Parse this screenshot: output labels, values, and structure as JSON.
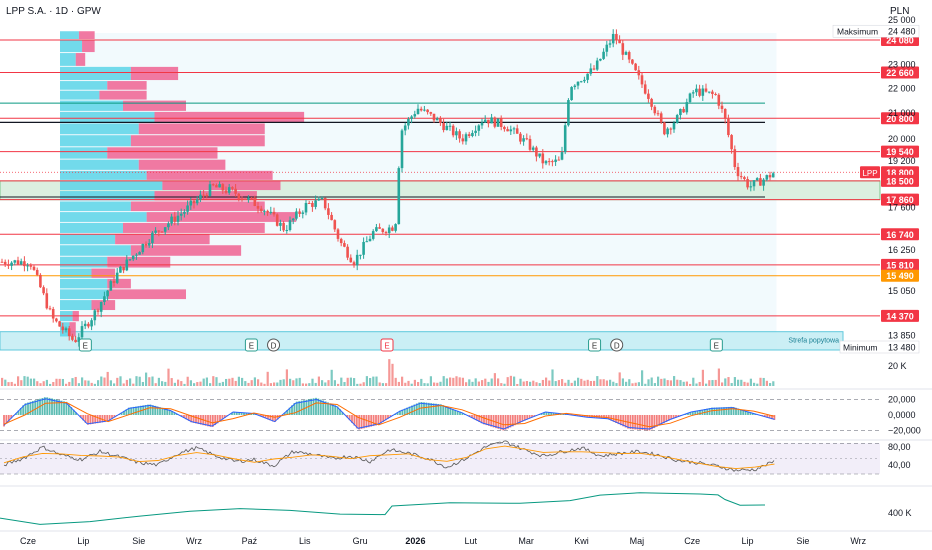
{
  "header": {
    "symbol_title": "LPP S.A. · 1D · GPW",
    "currency": "PLN"
  },
  "colors": {
    "up": "#26a69a",
    "down": "#ef5350",
    "level_red": "#f23645",
    "level_orange": "#ff9800",
    "level_green": "#089981",
    "volume_profile_up": "#5cd3e8",
    "volume_profile_down": "#f06292",
    "macd_line": "#2962ff",
    "signal_line": "#ff6d00",
    "stoch_k": "#555555",
    "stoch_d": "#ff9800",
    "obv": "#089981"
  },
  "chart_data": {
    "type": "candlestick",
    "symbol": "LPP",
    "current_price_label": "LPP",
    "current_price": 18800,
    "y_axis": {
      "range": [
        13480,
        25000
      ],
      "scale": "log",
      "tick_labels": [
        "25 000",
        "23 000",
        "22 000",
        "21 000",
        "20 000",
        "19 200",
        "17 600",
        "16 250",
        "15 050",
        "13 850"
      ],
      "tick_values": [
        25000,
        23000,
        22000,
        21000,
        20000,
        19200,
        17600,
        16250,
        15050,
        13850
      ]
    },
    "x_axis": {
      "labels": [
        "Cze",
        "Lip",
        "Sie",
        "Wrz",
        "Paź",
        "Lis",
        "Gru",
        "2026",
        "Lut",
        "Mar",
        "Kwi",
        "Maj",
        "Cze",
        "Lip",
        "Sie",
        "Wrz"
      ],
      "bold_label": "2026"
    },
    "levels": [
      {
        "label": "24 080",
        "value": 24080,
        "color": "red"
      },
      {
        "label": "22 660",
        "value": 22660,
        "color": "red"
      },
      {
        "label": "20 800",
        "value": 20800,
        "color": "red"
      },
      {
        "label": "19 540",
        "value": 19540,
        "color": "red"
      },
      {
        "label": "18 800",
        "value": 18800,
        "color": "red"
      },
      {
        "label": "18 500",
        "value": 18500,
        "color": "red"
      },
      {
        "label": "17 860",
        "value": 17860,
        "color": "red"
      },
      {
        "label": "16 740",
        "value": 16740,
        "color": "red"
      },
      {
        "label": "15 810",
        "value": 15810,
        "color": "red"
      },
      {
        "label": "15 490",
        "value": 15490,
        "color": "orange"
      },
      {
        "label": "14 370",
        "value": 14370,
        "color": "red"
      }
    ],
    "extremes": {
      "max_label": "Maksimum",
      "max_value": "24 480",
      "min_label": "Minimum",
      "min_value": "13 480"
    },
    "zones": [
      {
        "label": "",
        "from": 17860,
        "to": 18500,
        "color": "green"
      },
      {
        "label": "Strefa popytowa",
        "from": 13480,
        "to": 13950,
        "color": "cyan"
      }
    ],
    "event_markers": [
      {
        "month_index": 1,
        "kind": "E"
      },
      {
        "month_index": 4,
        "kind": "E"
      },
      {
        "month_index": 4.4,
        "kind": "D"
      },
      {
        "month_index": 6.45,
        "kind": "E"
      },
      {
        "month_index": 10.2,
        "kind": "E"
      },
      {
        "month_index": 10.6,
        "kind": "D"
      },
      {
        "month_index": 12.4,
        "kind": "E"
      }
    ],
    "price_path": [
      {
        "m": 0.0,
        "p": 15900
      },
      {
        "m": 0.4,
        "p": 14300
      },
      {
        "m": 0.8,
        "p": 13700
      },
      {
        "m": 1.15,
        "p": 14400
      },
      {
        "m": 1.6,
        "p": 15600
      },
      {
        "m": 2.2,
        "p": 16700
      },
      {
        "m": 2.8,
        "p": 17500
      },
      {
        "m": 3.3,
        "p": 18300
      },
      {
        "m": 3.7,
        "p": 18100
      },
      {
        "m": 4.2,
        "p": 17600
      },
      {
        "m": 4.6,
        "p": 16900
      },
      {
        "m": 5.0,
        "p": 17700
      },
      {
        "m": 5.3,
        "p": 17800
      },
      {
        "m": 5.6,
        "p": 16500
      },
      {
        "m": 5.85,
        "p": 15900
      },
      {
        "m": 6.2,
        "p": 16800
      },
      {
        "m": 6.6,
        "p": 17000
      },
      {
        "m": 6.7,
        "p": 20300
      },
      {
        "m": 7.0,
        "p": 21200
      },
      {
        "m": 7.3,
        "p": 20800
      },
      {
        "m": 7.8,
        "p": 20000
      },
      {
        "m": 8.2,
        "p": 20800
      },
      {
        "m": 8.6,
        "p": 20500
      },
      {
        "m": 9.0,
        "p": 19800
      },
      {
        "m": 9.3,
        "p": 19100
      },
      {
        "m": 9.6,
        "p": 19200
      },
      {
        "m": 9.75,
        "p": 22100
      },
      {
        "m": 10.2,
        "p": 22800
      },
      {
        "m": 10.55,
        "p": 24300
      },
      {
        "m": 10.8,
        "p": 23200
      },
      {
        "m": 11.2,
        "p": 21600
      },
      {
        "m": 11.45,
        "p": 20300
      },
      {
        "m": 11.7,
        "p": 20800
      },
      {
        "m": 12.0,
        "p": 21900
      },
      {
        "m": 12.4,
        "p": 21700
      },
      {
        "m": 12.55,
        "p": 20800
      },
      {
        "m": 12.75,
        "p": 18900
      },
      {
        "m": 13.0,
        "p": 18300
      },
      {
        "m": 13.3,
        "p": 18600
      },
      {
        "m": 13.45,
        "p": 18800
      }
    ],
    "volume_profile": [
      {
        "price_from": 24080,
        "price_to": 24480,
        "up": 0.12,
        "down": 0.1
      },
      {
        "price_from": 23500,
        "price_to": 24080,
        "up": 0.14,
        "down": 0.08
      },
      {
        "price_from": 22900,
        "price_to": 23500,
        "up": 0.1,
        "down": 0.06
      },
      {
        "price_from": 22300,
        "price_to": 22900,
        "up": 0.45,
        "down": 0.3
      },
      {
        "price_from": 21900,
        "price_to": 22300,
        "up": 0.3,
        "down": 0.25
      },
      {
        "price_from": 21500,
        "price_to": 21900,
        "up": 0.25,
        "down": 0.3
      },
      {
        "price_from": 21050,
        "price_to": 21500,
        "up": 0.4,
        "down": 0.4
      },
      {
        "price_from": 20600,
        "price_to": 21050,
        "up": 0.6,
        "down": 0.95
      },
      {
        "price_from": 20150,
        "price_to": 20600,
        "up": 0.5,
        "down": 0.8
      },
      {
        "price_from": 19700,
        "price_to": 20150,
        "up": 0.45,
        "down": 0.85
      },
      {
        "price_from": 19250,
        "price_to": 19700,
        "up": 0.3,
        "down": 0.7
      },
      {
        "price_from": 18850,
        "price_to": 19250,
        "up": 0.5,
        "down": 0.55
      },
      {
        "price_from": 18500,
        "price_to": 18850,
        "up": 0.55,
        "down": 0.8
      },
      {
        "price_from": 18150,
        "price_to": 18500,
        "up": 0.65,
        "down": 0.75
      },
      {
        "price_from": 17800,
        "price_to": 18150,
        "up": 0.6,
        "down": 0.65
      },
      {
        "price_from": 17450,
        "price_to": 17800,
        "up": 0.45,
        "down": 0.85
      },
      {
        "price_from": 17100,
        "price_to": 17450,
        "up": 0.55,
        "down": 0.95
      },
      {
        "price_from": 16750,
        "price_to": 17100,
        "up": 0.4,
        "down": 0.9
      },
      {
        "price_from": 16400,
        "price_to": 16750,
        "up": 0.35,
        "down": 0.6
      },
      {
        "price_from": 16050,
        "price_to": 16400,
        "up": 0.45,
        "down": 0.7
      },
      {
        "price_from": 15700,
        "price_to": 16050,
        "up": 0.3,
        "down": 0.4
      },
      {
        "price_from": 15400,
        "price_to": 15700,
        "up": 0.2,
        "down": 0.15
      },
      {
        "price_from": 15100,
        "price_to": 15400,
        "up": 0.3,
        "down": 0.15
      },
      {
        "price_from": 14800,
        "price_to": 15100,
        "up": 0.3,
        "down": 0.5
      },
      {
        "price_from": 14500,
        "price_to": 14800,
        "up": 0.2,
        "down": 0.15
      },
      {
        "price_from": 14200,
        "price_to": 14500,
        "up": 0.08,
        "down": 0.04
      },
      {
        "price_from": 13800,
        "price_to": 14200,
        "up": 0.06,
        "down": 0.04
      }
    ],
    "volume_panel": {
      "tick_label": "20 K",
      "tick_value": 20000
    },
    "macd_panel": {
      "tick_labels": [
        "20,000",
        "0,0000",
        "−20,000"
      ],
      "tick_values": [
        20,
        0,
        -20
      ],
      "histogram": [
        -14,
        14,
        22,
        16,
        -12,
        -8,
        9,
        13,
        6,
        -9,
        -15,
        4,
        2,
        -9,
        16,
        21,
        11,
        -18,
        -12,
        5,
        16,
        13,
        3,
        -11,
        -19,
        -7,
        4,
        1,
        -3,
        -5,
        -17,
        -19,
        -6,
        4,
        9,
        10,
        2,
        -6
      ]
    },
    "stoch_panel": {
      "tick_labels": [
        "80,00",
        "40,00"
      ],
      "tick_values": [
        80,
        40
      ],
      "k": [
        40,
        55,
        80,
        62,
        52,
        70,
        58,
        45,
        40,
        65,
        78,
        60,
        48,
        52,
        38,
        70,
        64,
        54,
        60,
        48,
        74,
        66,
        55,
        35,
        55,
        80,
        92,
        74,
        60,
        70,
        78,
        60,
        66,
        70,
        62,
        50,
        45,
        38,
        28,
        30,
        48
      ]
    },
    "obv_panel": {
      "tick_label": "400 K",
      "tick_value": 400000
    }
  }
}
